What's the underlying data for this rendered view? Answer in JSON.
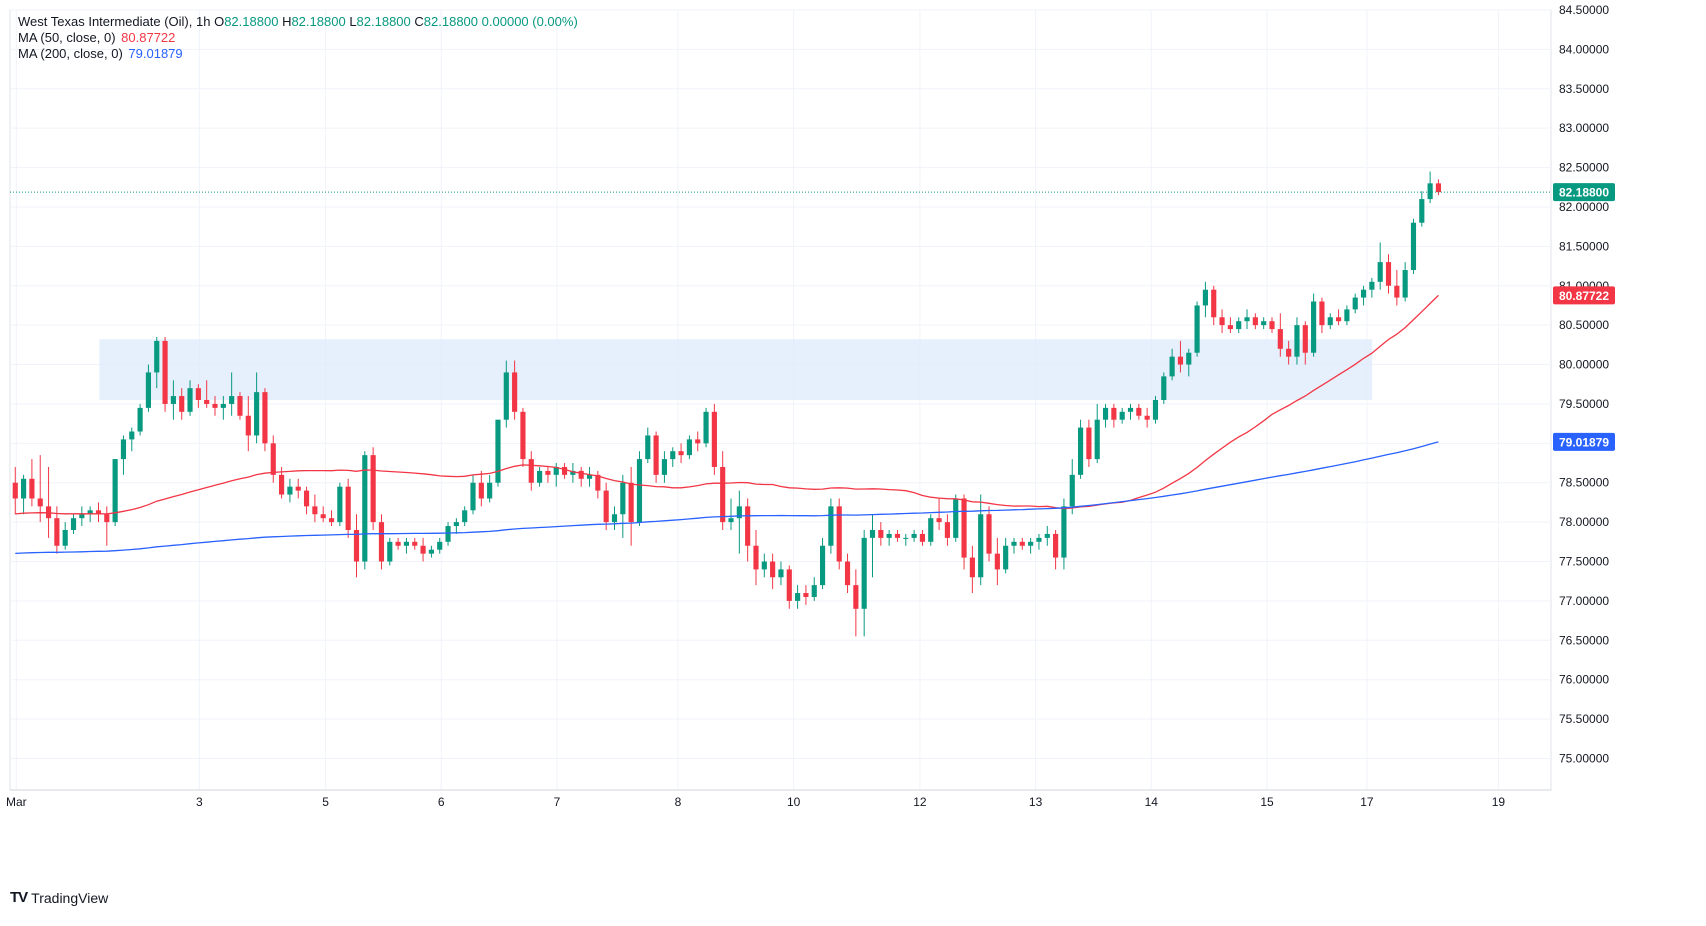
{
  "legend": {
    "symbol": "West Texas Intermediate (Oil)",
    "interval": "1h",
    "ohlc": [
      {
        "key": "O",
        "value": "82.18800"
      },
      {
        "key": "H",
        "value": "82.18800"
      },
      {
        "key": "L",
        "value": "82.18800"
      },
      {
        "key": "C",
        "value": "82.18800"
      }
    ],
    "change": "0.00000 (0.00%)",
    "ma50_label": "MA (50, close, 0)",
    "ma50_value": "80.87722",
    "ma200_label": "MA (200, close, 0)",
    "ma200_value": "79.01879"
  },
  "brand": {
    "name": "TradingView",
    "logo": "TV"
  },
  "colors": {
    "up": "#089981",
    "down": "#f23645",
    "ma50": "#f23645",
    "ma200": "#2962ff",
    "zone": "#dbe8fb",
    "grid": "#f0f3fa",
    "text": "#131722"
  },
  "chart_data": {
    "type": "candlestick",
    "title": "West Texas Intermediate (Oil), 1h",
    "x_tick_labels": [
      {
        "label": "Mar",
        "t": 0.6
      },
      {
        "label": "3",
        "t": 18
      },
      {
        "label": "5",
        "t": 30
      },
      {
        "label": "6",
        "t": 41
      },
      {
        "label": "7",
        "t": 52
      },
      {
        "label": "8",
        "t": 63.5
      },
      {
        "label": "10",
        "t": 74.5
      },
      {
        "label": "12",
        "t": 86.5
      },
      {
        "label": "13",
        "t": 97.5
      },
      {
        "label": "14",
        "t": 108.5
      },
      {
        "label": "15",
        "t": 119.5
      },
      {
        "label": "17",
        "t": 129
      },
      {
        "label": "19",
        "t": 141.5
      }
    ],
    "y_ticks": [
      "75.00000",
      "75.50000",
      "76.00000",
      "76.50000",
      "77.00000",
      "77.50000",
      "78.00000",
      "78.50000",
      "79.00000",
      "79.50000",
      "80.00000",
      "80.50000",
      "81.00000",
      "81.50000",
      "82.00000",
      "82.50000",
      "83.00000",
      "83.50000",
      "84.00000",
      "84.50000"
    ],
    "y_range": [
      74.6,
      84.5
    ],
    "x_range": [
      0,
      146.5
    ],
    "last_price": {
      "value": 82.188,
      "label": "82.18800"
    },
    "ma50_last": {
      "value": 80.87722,
      "label": "80.87722"
    },
    "ma200_last": {
      "value": 79.01879,
      "label": "79.01879"
    },
    "zone": {
      "t_start": 8.5,
      "t_end": 129.5,
      "low": 79.55,
      "high": 80.32
    },
    "candles": [
      [
        78.5,
        78.7,
        78.1,
        78.3
      ],
      [
        78.3,
        78.6,
        78.1,
        78.55
      ],
      [
        78.55,
        78.8,
        78.2,
        78.3
      ],
      [
        78.3,
        78.85,
        78.0,
        78.2
      ],
      [
        78.2,
        78.7,
        77.8,
        78.05
      ],
      [
        78.05,
        78.2,
        77.6,
        77.7
      ],
      [
        77.7,
        78.0,
        77.65,
        77.9
      ],
      [
        77.9,
        78.1,
        77.85,
        78.05
      ],
      [
        78.05,
        78.2,
        77.95,
        78.1
      ],
      [
        78.1,
        78.2,
        78.0,
        78.15
      ],
      [
        78.15,
        78.25,
        78.0,
        78.1
      ],
      [
        78.1,
        78.2,
        77.7,
        78.0
      ],
      [
        78.0,
        78.8,
        77.95,
        78.8
      ],
      [
        78.8,
        79.1,
        78.6,
        79.05
      ],
      [
        79.05,
        79.2,
        78.9,
        79.15
      ],
      [
        79.15,
        79.5,
        79.1,
        79.45
      ],
      [
        79.45,
        80.0,
        79.4,
        79.9
      ],
      [
        79.9,
        80.35,
        79.7,
        80.3
      ],
      [
        80.3,
        80.35,
        79.4,
        79.5
      ],
      [
        79.5,
        79.8,
        79.3,
        79.6
      ],
      [
        79.6,
        79.7,
        79.3,
        79.4
      ],
      [
        79.4,
        79.8,
        79.35,
        79.7
      ],
      [
        79.7,
        79.75,
        79.45,
        79.55
      ],
      [
        79.55,
        79.8,
        79.45,
        79.5
      ],
      [
        79.5,
        79.6,
        79.35,
        79.45
      ],
      [
        79.45,
        79.6,
        79.3,
        79.5
      ],
      [
        79.5,
        79.9,
        79.35,
        79.6
      ],
      [
        79.6,
        79.65,
        79.3,
        79.35
      ],
      [
        79.35,
        79.6,
        78.9,
        79.1
      ],
      [
        79.1,
        79.9,
        79.0,
        79.65
      ],
      [
        79.65,
        79.7,
        78.9,
        79.0
      ],
      [
        79.0,
        79.1,
        78.5,
        78.6
      ],
      [
        78.6,
        78.7,
        78.3,
        78.35
      ],
      [
        78.35,
        78.55,
        78.25,
        78.45
      ],
      [
        78.45,
        78.55,
        78.3,
        78.4
      ],
      [
        78.4,
        78.45,
        78.1,
        78.2
      ],
      [
        78.2,
        78.35,
        78.0,
        78.1
      ],
      [
        78.1,
        78.2,
        78.0,
        78.05
      ],
      [
        78.05,
        78.15,
        77.95,
        78.0
      ],
      [
        78.0,
        78.5,
        77.95,
        78.45
      ],
      [
        78.45,
        78.55,
        77.8,
        77.9
      ],
      [
        77.9,
        78.1,
        77.3,
        77.5
      ],
      [
        77.5,
        78.9,
        77.4,
        78.85
      ],
      [
        78.85,
        78.95,
        77.9,
        78.0
      ],
      [
        78.0,
        78.1,
        77.4,
        77.5
      ],
      [
        77.5,
        77.8,
        77.45,
        77.75
      ],
      [
        77.75,
        77.8,
        77.65,
        77.7
      ],
      [
        77.7,
        77.8,
        77.6,
        77.75
      ],
      [
        77.75,
        77.8,
        77.65,
        77.7
      ],
      [
        77.7,
        77.8,
        77.5,
        77.6
      ],
      [
        77.6,
        77.7,
        77.55,
        77.65
      ],
      [
        77.65,
        77.8,
        77.6,
        77.75
      ],
      [
        77.75,
        78.0,
        77.7,
        77.95
      ],
      [
        77.95,
        78.05,
        77.85,
        78.0
      ],
      [
        78.0,
        78.2,
        77.95,
        78.15
      ],
      [
        78.15,
        78.6,
        78.1,
        78.5
      ],
      [
        78.5,
        78.65,
        78.2,
        78.3
      ],
      [
        78.3,
        78.6,
        78.25,
        78.5
      ],
      [
        78.5,
        79.3,
        78.45,
        79.3
      ],
      [
        79.3,
        80.05,
        79.2,
        79.9
      ],
      [
        79.9,
        80.05,
        79.3,
        79.4
      ],
      [
        79.4,
        79.45,
        78.7,
        78.8
      ],
      [
        78.8,
        78.9,
        78.4,
        78.5
      ],
      [
        78.5,
        78.7,
        78.45,
        78.65
      ],
      [
        78.65,
        78.7,
        78.5,
        78.6
      ],
      [
        78.6,
        78.75,
        78.45,
        78.7
      ],
      [
        78.7,
        78.75,
        78.55,
        78.6
      ],
      [
        78.6,
        78.75,
        78.5,
        78.65
      ],
      [
        78.65,
        78.7,
        78.45,
        78.55
      ],
      [
        78.55,
        78.7,
        78.45,
        78.6
      ],
      [
        78.6,
        78.65,
        78.3,
        78.4
      ],
      [
        78.4,
        78.5,
        77.9,
        78.0
      ],
      [
        78.0,
        78.2,
        77.9,
        78.1
      ],
      [
        78.1,
        78.6,
        77.8,
        78.5
      ],
      [
        78.5,
        78.7,
        77.7,
        78.0
      ],
      [
        78.0,
        78.9,
        77.95,
        78.8
      ],
      [
        78.8,
        79.2,
        78.75,
        79.1
      ],
      [
        79.1,
        79.15,
        78.5,
        78.6
      ],
      [
        78.6,
        78.9,
        78.5,
        78.8
      ],
      [
        78.8,
        78.95,
        78.7,
        78.9
      ],
      [
        78.9,
        79.0,
        78.75,
        78.85
      ],
      [
        78.85,
        79.1,
        78.8,
        79.05
      ],
      [
        79.05,
        79.15,
        78.9,
        79.0
      ],
      [
        79.0,
        79.45,
        78.95,
        79.4
      ],
      [
        79.4,
        79.5,
        78.6,
        78.7
      ],
      [
        78.7,
        78.9,
        77.9,
        78.0
      ],
      [
        78.0,
        78.3,
        77.9,
        78.05
      ],
      [
        78.05,
        78.4,
        77.6,
        78.2
      ],
      [
        78.2,
        78.3,
        77.5,
        77.7
      ],
      [
        77.7,
        77.9,
        77.2,
        77.4
      ],
      [
        77.4,
        77.6,
        77.3,
        77.5
      ],
      [
        77.5,
        77.6,
        77.15,
        77.3
      ],
      [
        77.3,
        77.5,
        77.2,
        77.4
      ],
      [
        77.4,
        77.45,
        76.9,
        77.0
      ],
      [
        77.0,
        77.2,
        76.9,
        77.1
      ],
      [
        77.1,
        77.2,
        76.95,
        77.05
      ],
      [
        77.05,
        77.3,
        77.0,
        77.2
      ],
      [
        77.2,
        77.8,
        77.15,
        77.7
      ],
      [
        77.7,
        78.3,
        77.6,
        78.2
      ],
      [
        78.2,
        78.3,
        77.4,
        77.5
      ],
      [
        77.5,
        77.6,
        77.1,
        77.2
      ],
      [
        77.2,
        77.4,
        76.55,
        76.9
      ],
      [
        76.9,
        77.9,
        76.55,
        77.8
      ],
      [
        77.8,
        78.1,
        77.3,
        77.9
      ],
      [
        77.9,
        78.0,
        77.7,
        77.8
      ],
      [
        77.8,
        77.9,
        77.7,
        77.85
      ],
      [
        77.85,
        77.9,
        77.75,
        77.8
      ],
      [
        77.8,
        77.85,
        77.7,
        77.8
      ],
      [
        77.8,
        77.9,
        77.75,
        77.85
      ],
      [
        77.85,
        77.9,
        77.7,
        77.75
      ],
      [
        77.75,
        78.1,
        77.7,
        78.05
      ],
      [
        78.05,
        78.3,
        77.9,
        78.0
      ],
      [
        78.0,
        78.1,
        77.7,
        77.8
      ],
      [
        77.8,
        78.35,
        77.75,
        78.3
      ],
      [
        78.3,
        78.35,
        77.4,
        77.55
      ],
      [
        77.55,
        77.7,
        77.1,
        77.3
      ],
      [
        77.3,
        78.35,
        77.2,
        78.1
      ],
      [
        78.1,
        78.2,
        77.5,
        77.6
      ],
      [
        77.6,
        77.8,
        77.2,
        77.4
      ],
      [
        77.4,
        77.8,
        77.35,
        77.7
      ],
      [
        77.7,
        77.8,
        77.6,
        77.75
      ],
      [
        77.75,
        77.8,
        77.65,
        77.7
      ],
      [
        77.7,
        77.8,
        77.6,
        77.75
      ],
      [
        77.75,
        77.85,
        77.65,
        77.8
      ],
      [
        77.8,
        77.95,
        77.7,
        77.85
      ],
      [
        77.85,
        77.9,
        77.4,
        77.55
      ],
      [
        77.55,
        78.3,
        77.4,
        78.2
      ],
      [
        78.2,
        78.8,
        78.1,
        78.6
      ],
      [
        78.6,
        79.3,
        78.55,
        79.2
      ],
      [
        79.2,
        79.3,
        78.7,
        78.8
      ],
      [
        78.8,
        79.5,
        78.75,
        79.3
      ],
      [
        79.3,
        79.5,
        79.2,
        79.45
      ],
      [
        79.45,
        79.5,
        79.2,
        79.3
      ],
      [
        79.3,
        79.45,
        79.25,
        79.4
      ],
      [
        79.4,
        79.5,
        79.3,
        79.45
      ],
      [
        79.45,
        79.5,
        79.3,
        79.35
      ],
      [
        79.35,
        79.45,
        79.2,
        79.3
      ],
      [
        79.3,
        79.6,
        79.25,
        79.55
      ],
      [
        79.55,
        79.9,
        79.5,
        79.85
      ],
      [
        79.85,
        80.2,
        79.8,
        80.1
      ]
    ],
    "extra_candles": [
      [
        80.1,
        80.3,
        79.9,
        80.0
      ],
      [
        80.0,
        80.2,
        79.85,
        80.15
      ],
      [
        80.15,
        80.8,
        80.1,
        80.75
      ],
      [
        80.75,
        81.05,
        80.6,
        80.95
      ],
      [
        80.95,
        81.0,
        80.5,
        80.6
      ],
      [
        80.6,
        80.7,
        80.4,
        80.5
      ],
      [
        80.5,
        80.6,
        80.4,
        80.45
      ],
      [
        80.45,
        80.6,
        80.4,
        80.55
      ],
      [
        80.55,
        80.7,
        80.45,
        80.6
      ],
      [
        80.6,
        80.65,
        80.45,
        80.5
      ],
      [
        80.5,
        80.6,
        80.45,
        80.55
      ],
      [
        80.55,
        80.6,
        80.4,
        80.45
      ],
      [
        80.45,
        80.65,
        80.1,
        80.2
      ],
      [
        80.2,
        80.3,
        80.0,
        80.1
      ],
      [
        80.1,
        80.6,
        80.0,
        80.5
      ],
      [
        80.5,
        80.55,
        80.0,
        80.15
      ],
      [
        80.15,
        80.9,
        80.1,
        80.8
      ],
      [
        80.8,
        80.85,
        80.4,
        80.5
      ],
      [
        80.5,
        80.65,
        80.45,
        80.6
      ],
      [
        80.6,
        80.7,
        80.5,
        80.55
      ],
      [
        80.55,
        80.75,
        80.5,
        80.7
      ],
      [
        80.7,
        80.9,
        80.65,
        80.85
      ],
      [
        80.85,
        81.0,
        80.75,
        80.95
      ],
      [
        80.95,
        81.1,
        80.85,
        81.05
      ],
      [
        81.05,
        81.55,
        80.95,
        81.3
      ],
      [
        81.3,
        81.4,
        80.9,
        81.0
      ],
      [
        81.0,
        81.2,
        80.75,
        80.85
      ],
      [
        80.85,
        81.3,
        80.8,
        81.2
      ],
      [
        81.2,
        81.85,
        81.15,
        81.8
      ],
      [
        81.8,
        82.2,
        81.75,
        82.1
      ],
      [
        82.1,
        82.45,
        82.05,
        82.3
      ],
      [
        82.3,
        82.35,
        82.15,
        82.188
      ]
    ]
  }
}
